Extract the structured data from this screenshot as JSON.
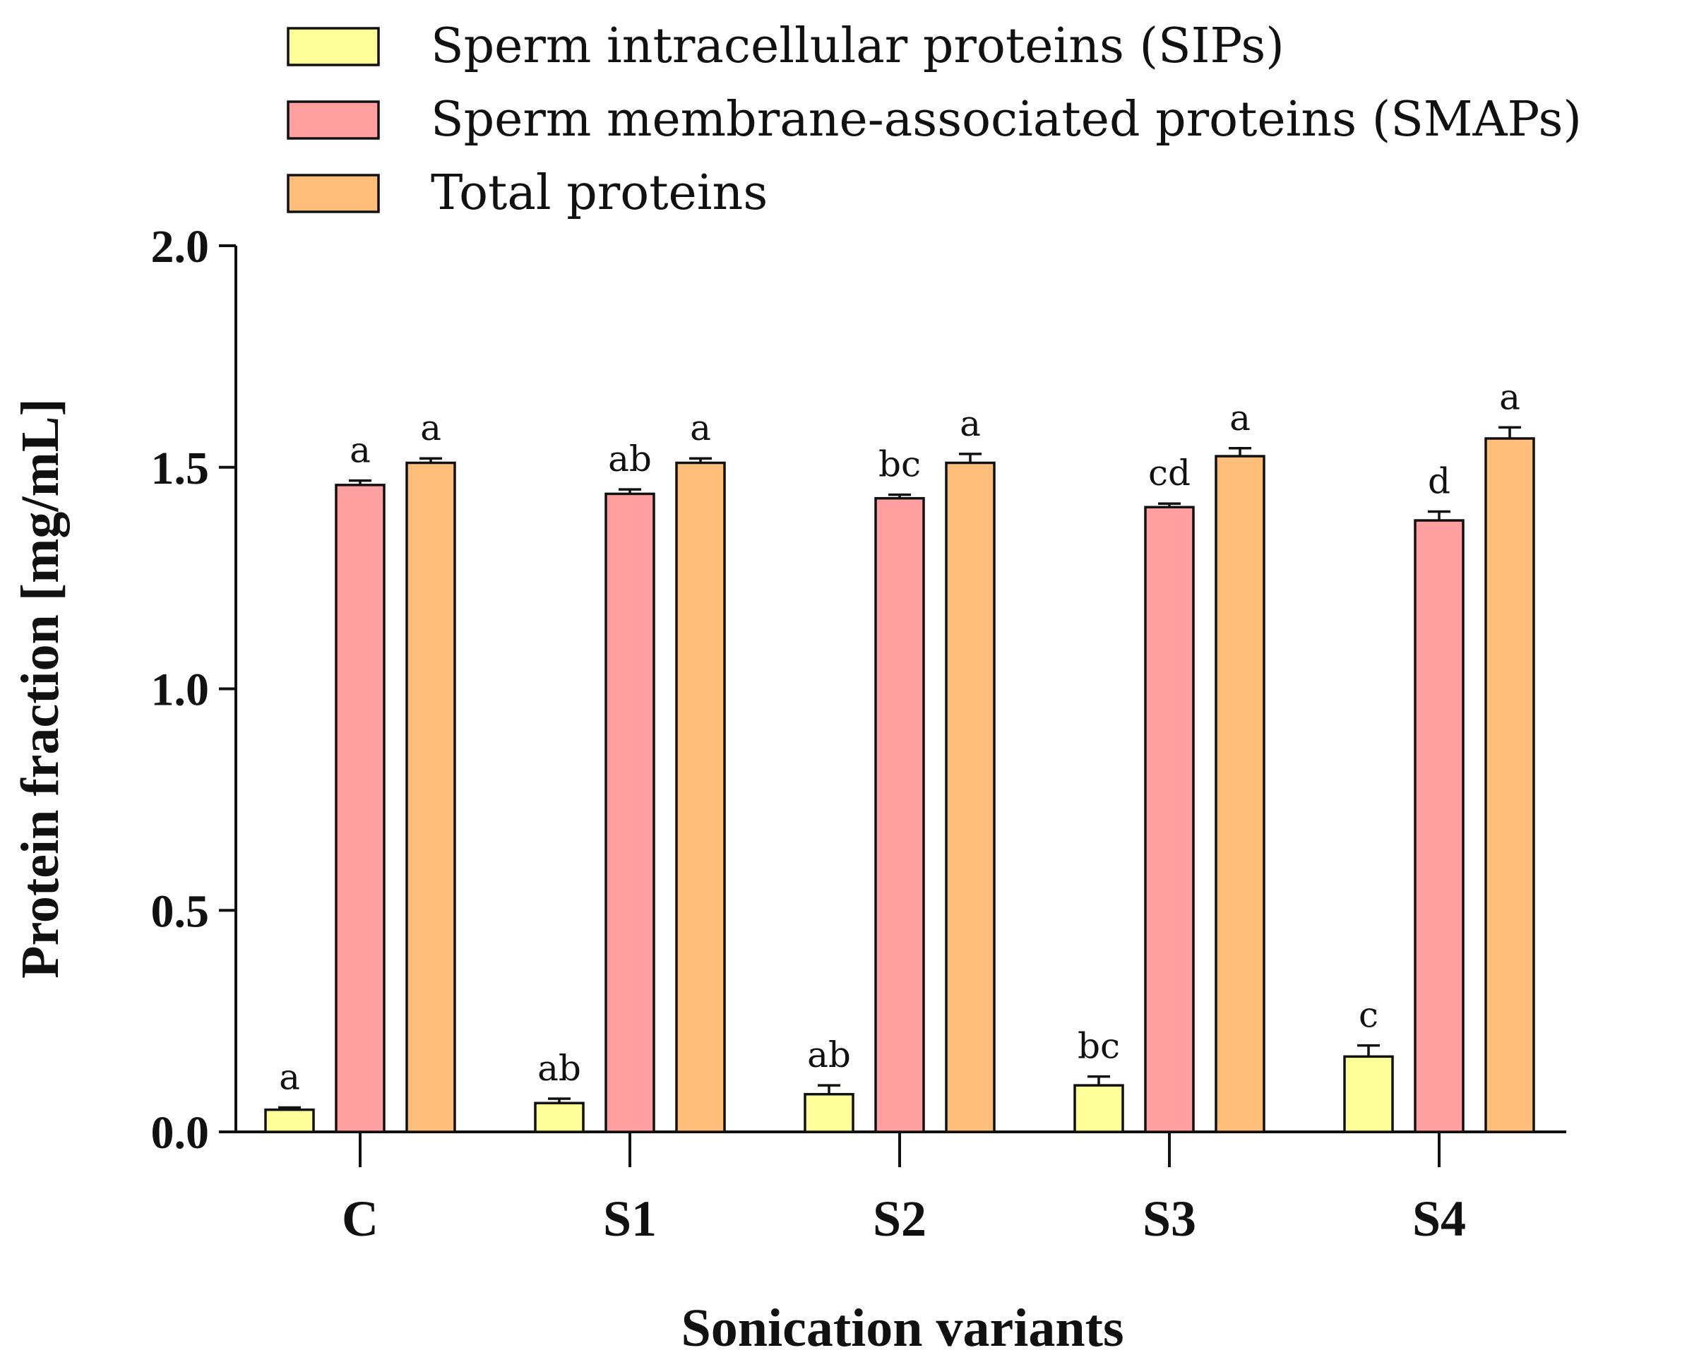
{
  "chart_data": {
    "type": "bar",
    "title": "",
    "xlabel": "Sonication variants",
    "ylabel": "Protein fraction [mg/mL]",
    "ylim": [
      0,
      2.0
    ],
    "yticks": [
      {
        "value": 0.0,
        "label": "0.0"
      },
      {
        "value": 0.5,
        "label": "0.5"
      },
      {
        "value": 1.0,
        "label": "1.0"
      },
      {
        "value": 1.5,
        "label": "1.5"
      },
      {
        "value": 2.0,
        "label": "2.0"
      }
    ],
    "categories": [
      "C",
      "S1",
      "S2",
      "S3",
      "S4"
    ],
    "legend_position": "top",
    "series": [
      {
        "name": "Sperm intracellular proteins (SIPs)",
        "color": "#ffff99",
        "values": [
          0.05,
          0.065,
          0.085,
          0.105,
          0.17
        ],
        "errors": [
          0.005,
          0.01,
          0.02,
          0.02,
          0.025
        ],
        "significance": [
          "a",
          "ab",
          "ab",
          "bc",
          "c"
        ]
      },
      {
        "name": "Sperm membrane-associated proteins (SMAPs)",
        "color": "#ff9f9f",
        "values": [
          1.46,
          1.44,
          1.43,
          1.41,
          1.38
        ],
        "errors": [
          0.01,
          0.01,
          0.008,
          0.008,
          0.02
        ],
        "significance": [
          "a",
          "ab",
          "bc",
          "cd",
          "d"
        ]
      },
      {
        "name": "Total proteins",
        "color": "#ffbd7a",
        "values": [
          1.51,
          1.51,
          1.51,
          1.525,
          1.565
        ],
        "errors": [
          0.01,
          0.01,
          0.02,
          0.018,
          0.025
        ],
        "significance": [
          "a",
          "a",
          "a",
          "a",
          "a"
        ]
      }
    ]
  }
}
